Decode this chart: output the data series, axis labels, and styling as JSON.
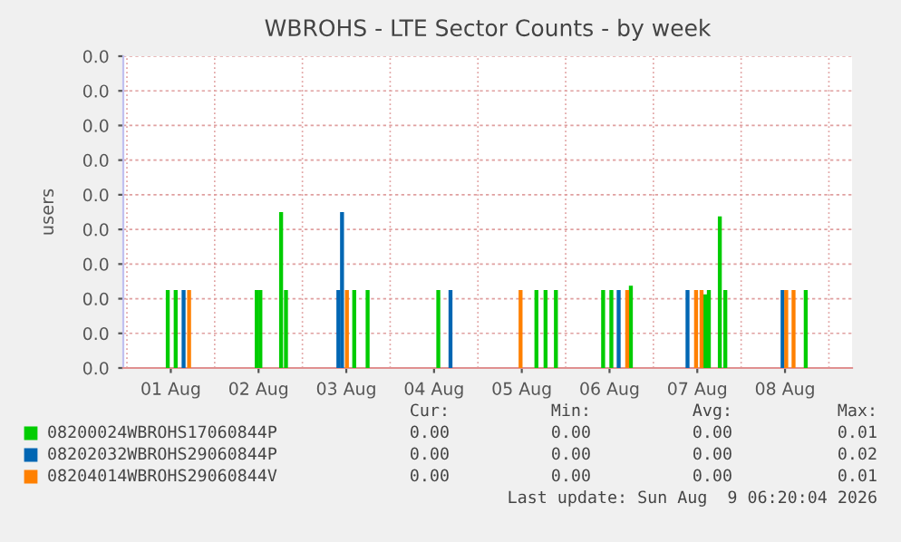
{
  "chart_data": {
    "type": "bar",
    "title": "WBROHS - LTE Sector Counts - by week",
    "ylabel": "users",
    "xlim": [
      "2026-07-31T23:00",
      "2026-08-09T06:20"
    ],
    "xticks": [
      {
        "value": "2026-08-01T12:00",
        "label": "01 Aug"
      },
      {
        "value": "2026-08-02T12:00",
        "label": "02 Aug"
      },
      {
        "value": "2026-08-03T12:00",
        "label": "03 Aug"
      },
      {
        "value": "2026-08-04T12:00",
        "label": "04 Aug"
      },
      {
        "value": "2026-08-05T12:00",
        "label": "05 Aug"
      },
      {
        "value": "2026-08-06T12:00",
        "label": "06 Aug"
      },
      {
        "value": "2026-08-07T12:00",
        "label": "07 Aug"
      },
      {
        "value": "2026-08-08T12:00",
        "label": "08 Aug"
      }
    ],
    "ylim": [
      0,
      0.036
    ],
    "yticks": [
      {
        "value": 0,
        "label": "0.0"
      },
      {
        "value": 0.004,
        "label": "0.0"
      },
      {
        "value": 0.008,
        "label": "0.0"
      },
      {
        "value": 0.012,
        "label": "0.0"
      },
      {
        "value": 0.016,
        "label": "0.0"
      },
      {
        "value": 0.02,
        "label": "0.0"
      },
      {
        "value": 0.024,
        "label": "0.0"
      },
      {
        "value": 0.028,
        "label": "0.0"
      },
      {
        "value": 0.032,
        "label": "0.0"
      },
      {
        "value": 0.036,
        "label": "0.0"
      }
    ],
    "grid": true,
    "legend": "bottom",
    "series": [
      {
        "name": "08200024WBROHS17060844P",
        "color": "#00cc00",
        "x": [
          "2026-08-01T11:10",
          "2026-08-01T13:20",
          "2026-08-02T11:30",
          "2026-08-02T12:30",
          "2026-08-02T18:10",
          "2026-08-02T19:30",
          "2026-08-03T14:10",
          "2026-08-03T17:50",
          "2026-08-04T13:10",
          "2026-08-05T16:00",
          "2026-08-05T18:30",
          "2026-08-05T21:20",
          "2026-08-06T10:15",
          "2026-08-06T12:30",
          "2026-08-06T17:50",
          "2026-08-07T14:10",
          "2026-08-07T15:10",
          "2026-08-07T18:10",
          "2026-08-07T19:40",
          "2026-08-08T17:40"
        ],
        "values": [
          0.009,
          0.009,
          0.009,
          0.009,
          0.018,
          0.009,
          0.009,
          0.009,
          0.009,
          0.009,
          0.009,
          0.009,
          0.009,
          0.009,
          0.0095,
          0.0085,
          0.009,
          0.0175,
          0.009,
          0.009
        ]
      },
      {
        "name": "08202032WBROHS29060844P",
        "color": "#0066b3",
        "x": [
          "2026-08-01T15:30",
          "2026-08-03T09:50",
          "2026-08-03T10:50",
          "2026-08-04T16:30",
          "2026-08-06T14:30",
          "2026-08-07T09:20",
          "2026-08-08T11:20"
        ],
        "values": [
          0.009,
          0.009,
          0.018,
          0.009,
          0.009,
          0.009,
          0.009
        ]
      },
      {
        "name": "08204014WBROHS29060844V",
        "color": "#ff8000",
        "x": [
          "2026-08-01T17:00",
          "2026-08-03T12:10",
          "2026-08-05T11:40",
          "2026-08-06T16:50",
          "2026-08-07T11:40",
          "2026-08-07T13:10",
          "2026-08-08T12:20",
          "2026-08-08T14:20"
        ],
        "values": [
          0.009,
          0.009,
          0.009,
          0.009,
          0.009,
          0.009,
          0.009,
          0.009
        ]
      }
    ],
    "annotations": [
      "Cur:",
      "Min:",
      "Avg:",
      "Max:",
      "0.00",
      "0.00",
      "0.00",
      "0.01",
      "0.00",
      "0.00",
      "0.00",
      "0.02",
      "0.00",
      "0.00",
      "0.00",
      "0.01",
      "Last update: Sun Aug  9 06:20:04 2026"
    ]
  }
}
